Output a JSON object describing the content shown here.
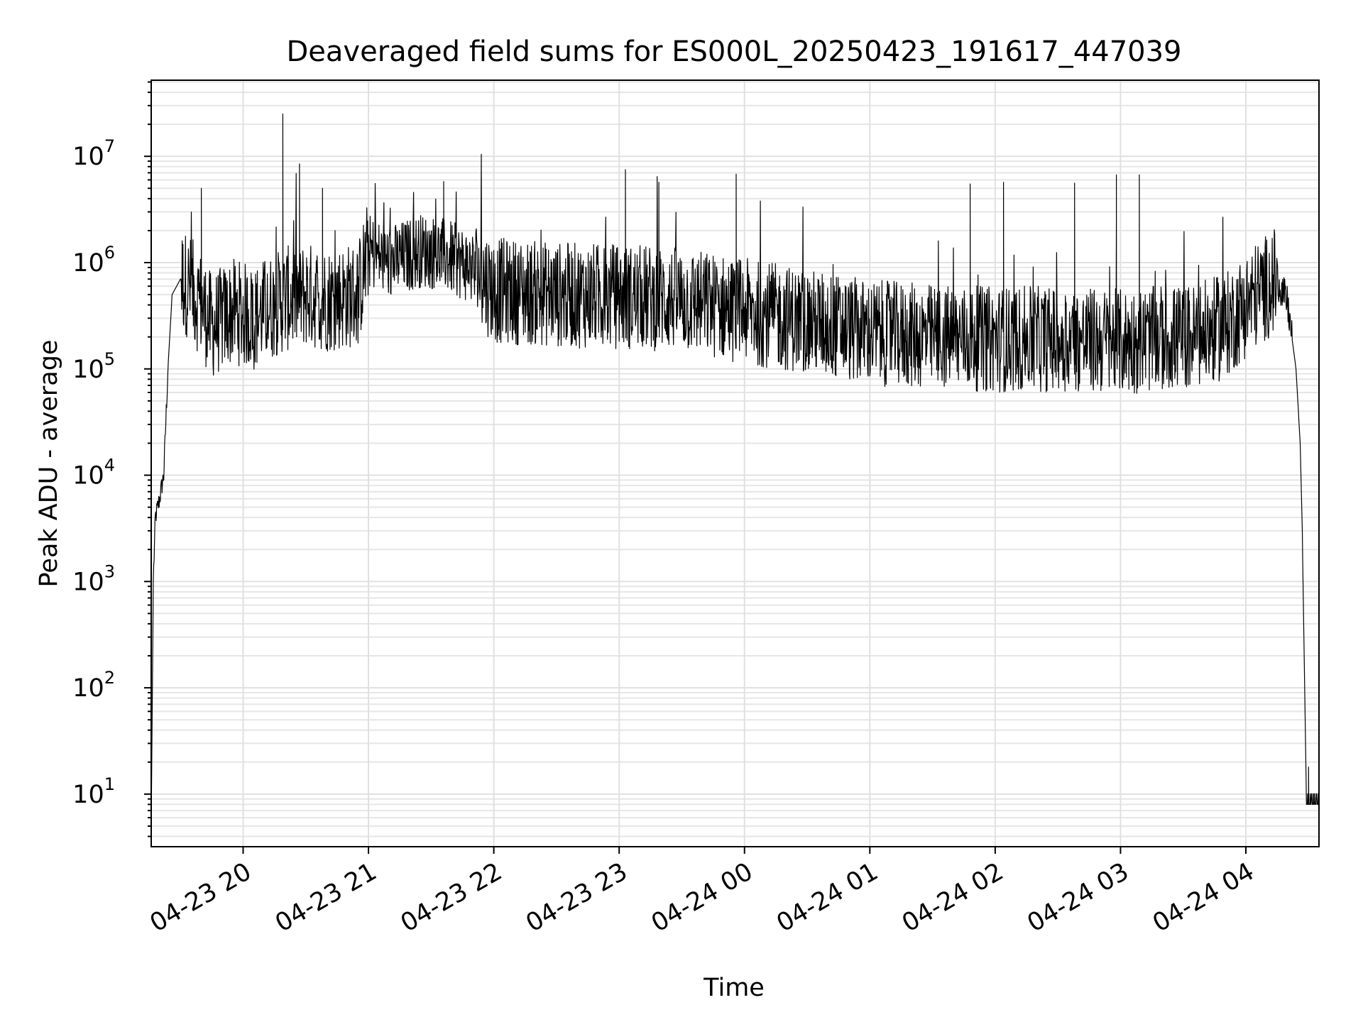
{
  "chart_data": {
    "type": "line",
    "title": "Deaveraged field sums for ES000L_20250423_191617_447039",
    "xlabel": "Time",
    "ylabel": "Peak ADU - average",
    "yscale": "log",
    "ylim": [
      3.2,
      52000000
    ],
    "xlim": [
      "2025-04-23 19:16",
      "2025-04-24 04:35"
    ],
    "grid": true,
    "legend": "none",
    "line_color": "#000000",
    "x_tick_labels": [
      "04-23 20",
      "04-23 21",
      "04-23 22",
      "04-23 23",
      "04-24 00",
      "04-24 01",
      "04-24 02",
      "04-24 03",
      "04-24 04"
    ],
    "x_ticks": [
      "2025-04-23 20:00",
      "2025-04-23 21:00",
      "2025-04-23 22:00",
      "2025-04-23 23:00",
      "2025-04-24 00:00",
      "2025-04-24 01:00",
      "2025-04-24 02:00",
      "2025-04-24 03:00",
      "2025-04-24 04:00"
    ],
    "y_ticks": [
      10,
      100,
      1000,
      10000,
      100000,
      1000000,
      10000000
    ],
    "y_tick_labels": [
      {
        "base": "10",
        "exp": "1"
      },
      {
        "base": "10",
        "exp": "2"
      },
      {
        "base": "10",
        "exp": "3"
      },
      {
        "base": "10",
        "exp": "4"
      },
      {
        "base": "10",
        "exp": "5"
      },
      {
        "base": "10",
        "exp": "6"
      },
      {
        "base": "10",
        "exp": "7"
      }
    ],
    "series": [
      {
        "x": [
          "2025-04-23 19:16",
          "2025-04-23 19:17",
          "2025-04-23 19:18",
          "2025-04-23 19:20",
          "2025-04-23 19:22",
          "2025-04-23 19:24",
          "2025-04-23 19:26",
          "2025-04-23 19:30",
          "2025-04-23 19:34",
          "2025-04-23 19:40",
          "2025-04-23 19:45",
          "2025-04-23 19:55",
          "2025-04-23 20:05",
          "2025-04-23 20:10",
          "2025-04-23 20:20",
          "2025-04-23 20:30",
          "2025-04-23 20:40",
          "2025-04-23 20:55",
          "2025-04-23 21:00",
          "2025-04-23 21:10",
          "2025-04-23 21:25",
          "2025-04-23 21:35",
          "2025-04-23 21:50",
          "2025-04-23 22:00",
          "2025-04-23 22:30",
          "2025-04-23 23:00",
          "2025-04-23 23:30",
          "2025-04-24 00:00",
          "2025-04-24 00:30",
          "2025-04-24 01:00",
          "2025-04-24 01:30",
          "2025-04-24 02:00",
          "2025-04-24 02:30",
          "2025-04-24 03:00",
          "2025-04-24 03:15",
          "2025-04-24 03:35",
          "2025-04-24 03:50",
          "2025-04-24 04:05",
          "2025-04-24 04:15",
          "2025-04-24 04:20",
          "2025-04-24 04:24",
          "2025-04-24 04:26",
          "2025-04-24 04:27",
          "2025-04-24 04:29",
          "2025-04-24 04:35"
        ],
        "y": [
          5,
          1000,
          4000,
          6000,
          10000,
          100000,
          500000,
          700000,
          600000,
          400000,
          250000,
          350000,
          300000,
          350000,
          450000,
          500000,
          450000,
          500000,
          1300000,
          1000000,
          1300000,
          1200000,
          900000,
          550000,
          500000,
          480000,
          450000,
          350000,
          280000,
          220000,
          200000,
          190000,
          190000,
          180000,
          190000,
          200000,
          250000,
          500000,
          700000,
          400000,
          100000,
          20000,
          3000,
          8,
          8
        ]
      }
    ],
    "spikes": [
      {
        "x": "2025-04-23 19:40",
        "y": 5000000
      },
      {
        "x": "2025-04-23 20:19",
        "y": 25000000
      },
      {
        "x": "2025-04-23 20:27",
        "y": 8500000
      },
      {
        "x": "2025-04-23 20:38",
        "y": 5000000
      },
      {
        "x": "2025-04-23 21:36",
        "y": 5800000
      },
      {
        "x": "2025-04-23 23:03",
        "y": 7500000
      },
      {
        "x": "2025-04-23 23:19",
        "y": 5700000
      },
      {
        "x": "2025-04-23 23:56",
        "y": 6800000
      },
      {
        "x": "2025-04-24 01:48",
        "y": 5500000
      },
      {
        "x": "2025-04-24 02:04",
        "y": 5700000
      },
      {
        "x": "2025-04-24 02:38",
        "y": 5600000
      },
      {
        "x": "2025-04-24 02:58",
        "y": 6700000
      },
      {
        "x": "2025-04-24 03:09",
        "y": 6700000
      },
      {
        "x": "2025-04-24 04:30",
        "y": 18
      }
    ]
  }
}
